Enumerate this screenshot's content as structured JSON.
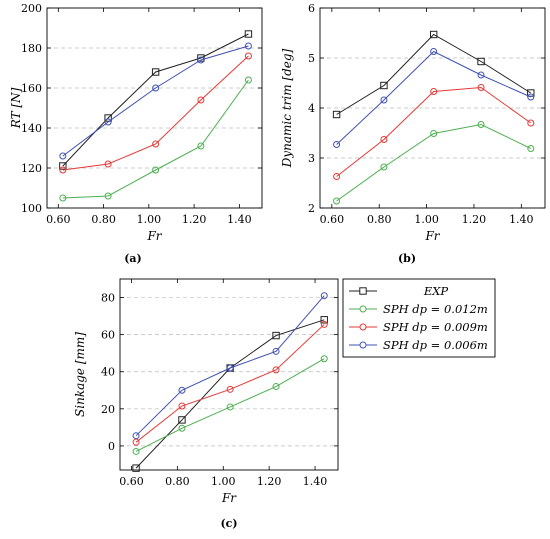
{
  "chart_data": [
    {
      "id": "a",
      "type": "line",
      "caption": "(a)",
      "xlabel": "Fr",
      "ylabel": "RT [N]",
      "x": [
        0.62,
        0.82,
        1.03,
        1.23,
        1.44
      ],
      "xticks": [
        "0.60",
        "0.80",
        "1.00",
        "1.20",
        "1.40"
      ],
      "xtick_values": [
        0.6,
        0.8,
        1.0,
        1.2,
        1.4
      ],
      "xlim": [
        0.55,
        1.5
      ],
      "ylim": [
        100,
        200
      ],
      "yticks": [
        "100",
        "120",
        "140",
        "160",
        "180",
        "200"
      ],
      "ytick_values": [
        100,
        120,
        140,
        160,
        180,
        200
      ],
      "grid": "horizontal-dashed",
      "series": [
        {
          "key": "exp",
          "values": [
            121,
            145,
            168,
            175,
            187
          ]
        },
        {
          "key": "sph012",
          "values": [
            105,
            106,
            119,
            131,
            164
          ]
        },
        {
          "key": "sph009",
          "values": [
            119,
            122,
            132,
            154,
            176
          ]
        },
        {
          "key": "sph006",
          "values": [
            126,
            143,
            160,
            174,
            181
          ]
        }
      ]
    },
    {
      "id": "b",
      "type": "line",
      "caption": "(b)",
      "xlabel": "Fr",
      "ylabel": "Dynamic trim [deg]",
      "x": [
        0.62,
        0.82,
        1.03,
        1.23,
        1.44
      ],
      "xticks": [
        "0.60",
        "0.80",
        "1.00",
        "1.20",
        "1.40"
      ],
      "xtick_values": [
        0.6,
        0.8,
        1.0,
        1.2,
        1.4
      ],
      "xlim": [
        0.55,
        1.5
      ],
      "ylim": [
        2,
        6
      ],
      "yticks": [
        "2",
        "3",
        "4",
        "5",
        "6"
      ],
      "ytick_values": [
        2,
        3,
        4,
        5,
        6
      ],
      "grid": "horizontal-dashed",
      "series": [
        {
          "key": "exp",
          "values": [
            3.87,
            4.45,
            5.47,
            4.93,
            4.3
          ]
        },
        {
          "key": "sph012",
          "values": [
            2.14,
            2.82,
            3.49,
            3.67,
            3.19
          ]
        },
        {
          "key": "sph009",
          "values": [
            2.63,
            3.37,
            4.33,
            4.41,
            3.7
          ]
        },
        {
          "key": "sph006",
          "values": [
            3.27,
            4.16,
            5.13,
            4.66,
            4.22
          ]
        }
      ]
    },
    {
      "id": "c",
      "type": "line",
      "caption": "(c)",
      "xlabel": "Fr",
      "ylabel": "Sinkage [mm]",
      "x": [
        0.62,
        0.82,
        1.03,
        1.23,
        1.44
      ],
      "xticks": [
        "0.60",
        "0.80",
        "1.00",
        "1.20",
        "1.40"
      ],
      "xtick_values": [
        0.6,
        0.8,
        1.0,
        1.2,
        1.4
      ],
      "xlim": [
        0.55,
        1.5
      ],
      "ylim": [
        -13,
        90
      ],
      "yticks": [
        "0",
        "20",
        "40",
        "60",
        "80"
      ],
      "ytick_values": [
        0,
        20,
        40,
        60,
        80
      ],
      "grid": "horizontal-dashed",
      "legend": "right",
      "series": [
        {
          "key": "exp",
          "values": [
            -12,
            14,
            42,
            59.5,
            68
          ]
        },
        {
          "key": "sph012",
          "values": [
            -3,
            9.5,
            21,
            32,
            47
          ]
        },
        {
          "key": "sph009",
          "values": [
            2,
            21.5,
            30.5,
            41,
            65.5
          ]
        },
        {
          "key": "sph006",
          "values": [
            5.5,
            30,
            42,
            51,
            81
          ]
        }
      ]
    }
  ],
  "legend": {
    "entries": [
      {
        "key": "exp",
        "label": "EXP",
        "color": "#222222",
        "marker": "square"
      },
      {
        "key": "sph012",
        "label": "SPH dp = 0.012m",
        "color": "#4caf50",
        "marker": "circle"
      },
      {
        "key": "sph009",
        "label": "SPH dp = 0.009m",
        "color": "#e53935",
        "marker": "circle"
      },
      {
        "key": "sph006",
        "label": "SPH dp = 0.006m",
        "color": "#3f51b5",
        "marker": "circle"
      }
    ]
  }
}
